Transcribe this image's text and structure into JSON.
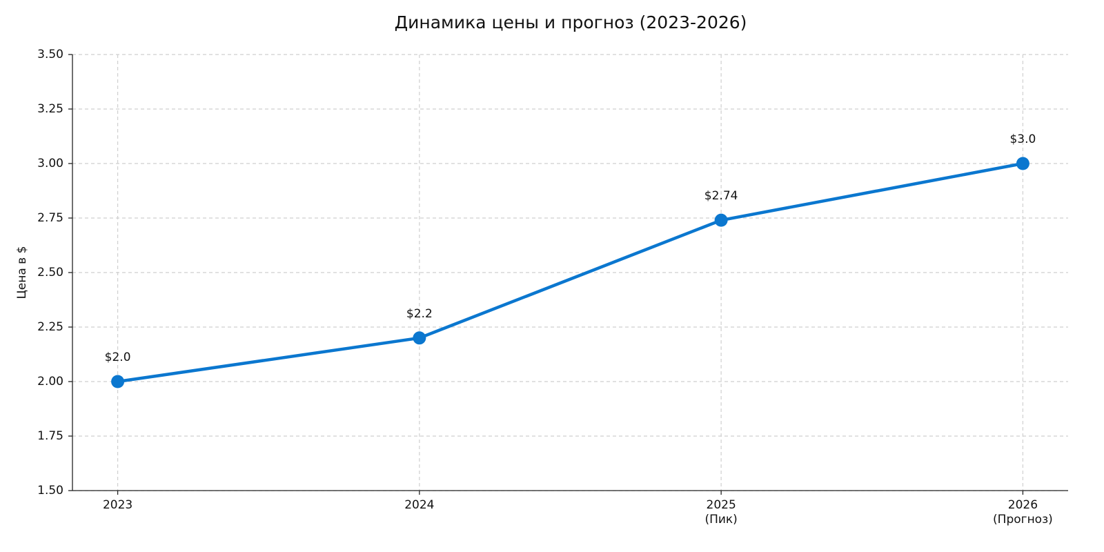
{
  "chart_data": {
    "type": "line",
    "title": "Динамика цены и прогноз (2023-2026)",
    "y_label": "Цена в $",
    "categories": [
      "2023",
      "2024",
      "2025\n(Пик)",
      "2026\n(Прогноз)"
    ],
    "series": [
      {
        "name": "Цена",
        "color": "#0b77cf",
        "values": [
          2.0,
          2.2,
          2.74,
          3.0
        ],
        "value_labels": [
          "$2.0",
          "$2.2",
          "$2.74",
          "$3.0"
        ]
      }
    ],
    "ylim": [
      1.5,
      3.5
    ],
    "yticks": [
      {
        "value": 1.5,
        "label": "1.50"
      },
      1.75,
      {
        "value": 2.0,
        "label": "2.00"
      },
      2.25,
      {
        "value": 2.5,
        "label": "2.50"
      },
      2.75,
      {
        "value": 3.0,
        "label": "3.00"
      },
      3.25,
      {
        "value": 3.5,
        "label": "3.50"
      }
    ],
    "grid": true
  }
}
